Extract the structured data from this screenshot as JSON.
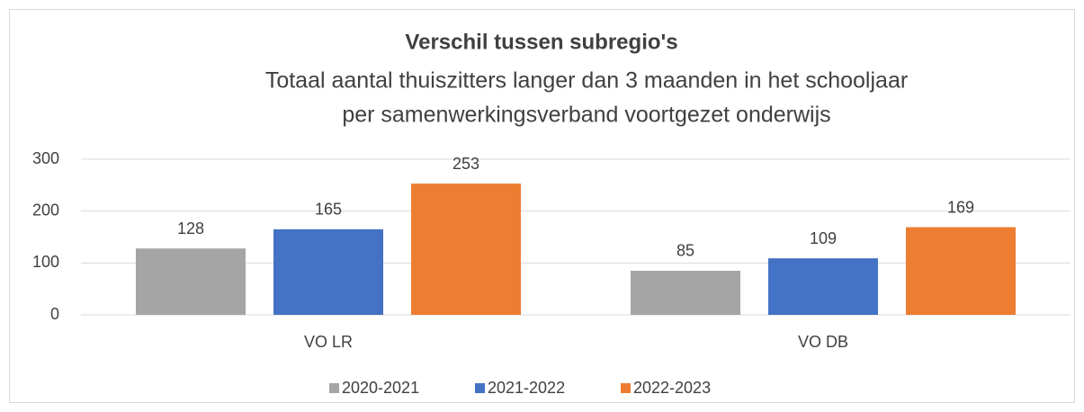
{
  "chart_data": {
    "type": "bar",
    "title": "Verschil tussen subregio's",
    "subtitle": [
      "Totaal aantal thuiszitters langer dan 3 maanden in het schooljaar",
      "per samenwerkingsverband voortgezet onderwijs"
    ],
    "categories": [
      "VO LR",
      "VO DB"
    ],
    "series": [
      {
        "name": "2020-2021",
        "color": "#a5a5a5",
        "values": [
          128,
          85
        ]
      },
      {
        "name": "2021-2022",
        "color": "#4472c4",
        "values": [
          165,
          109
        ]
      },
      {
        "name": "2022-2023",
        "color": "#ed7d31",
        "values": [
          253,
          169
        ]
      }
    ],
    "ylim": [
      0,
      300
    ],
    "yticks": [
      0,
      100,
      200,
      300
    ],
    "grid": true,
    "legend": "bottom"
  }
}
